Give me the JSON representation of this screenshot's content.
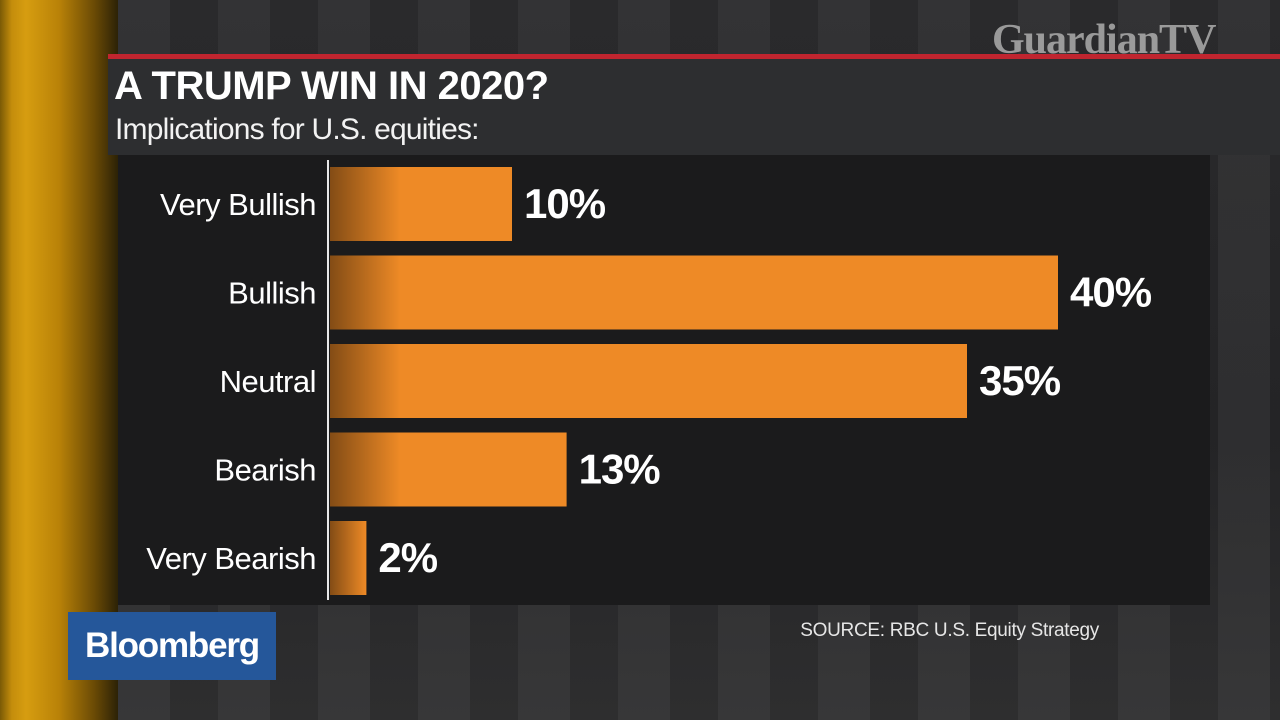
{
  "watermark": "GuardianTV",
  "brand": "Bloomberg",
  "source": "SOURCE: RBC U.S. Equity Strategy",
  "colors": {
    "bar": "#ee8a26",
    "red_rule": "#c0252f",
    "brand_box": "#25579a"
  },
  "chart_data": {
    "type": "bar",
    "orientation": "horizontal",
    "title": "A TRUMP WIN IN 2020?",
    "subtitle": "Implications for U.S. equities:",
    "categories": [
      "Very Bullish",
      "Bullish",
      "Neutral",
      "Bearish",
      "Very Bearish"
    ],
    "values": [
      10,
      40,
      35,
      13,
      2
    ],
    "value_labels": [
      "10%",
      "40%",
      "35%",
      "13%",
      "2%"
    ],
    "unit": "%",
    "xlim": [
      0,
      40
    ],
    "grid": false,
    "legend": "none"
  }
}
